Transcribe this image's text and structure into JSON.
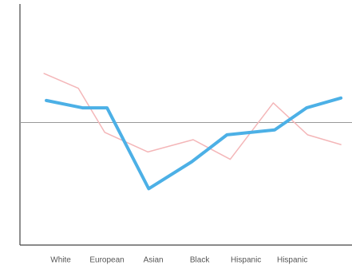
{
  "chart_data": {
    "type": "line",
    "categories": [
      "White",
      "European",
      "Asian",
      "Black",
      "Hispanic",
      "Hispanic"
    ],
    "xlim": [
      -0.88,
      6.29
    ],
    "ylim": [
      0,
      100
    ],
    "reference_line": 50,
    "series": [
      {
        "color": "#f4b6b8",
        "width": 1.5,
        "x": [
          -0.36,
          0.38,
          0.95,
          1.88,
          2.86,
          3.66,
          4.59,
          5.33,
          6.05
        ],
        "values": [
          70,
          64,
          46,
          38,
          43,
          35,
          58,
          45,
          41
        ]
      },
      {
        "color": "#4cb0e6",
        "width": 4,
        "x": [
          -0.31,
          0.47,
          1.0,
          1.9,
          2.83,
          3.59,
          4.62,
          5.31,
          6.05
        ],
        "values": [
          59,
          56,
          56,
          23,
          34,
          45,
          47,
          56,
          60
        ]
      }
    ]
  }
}
